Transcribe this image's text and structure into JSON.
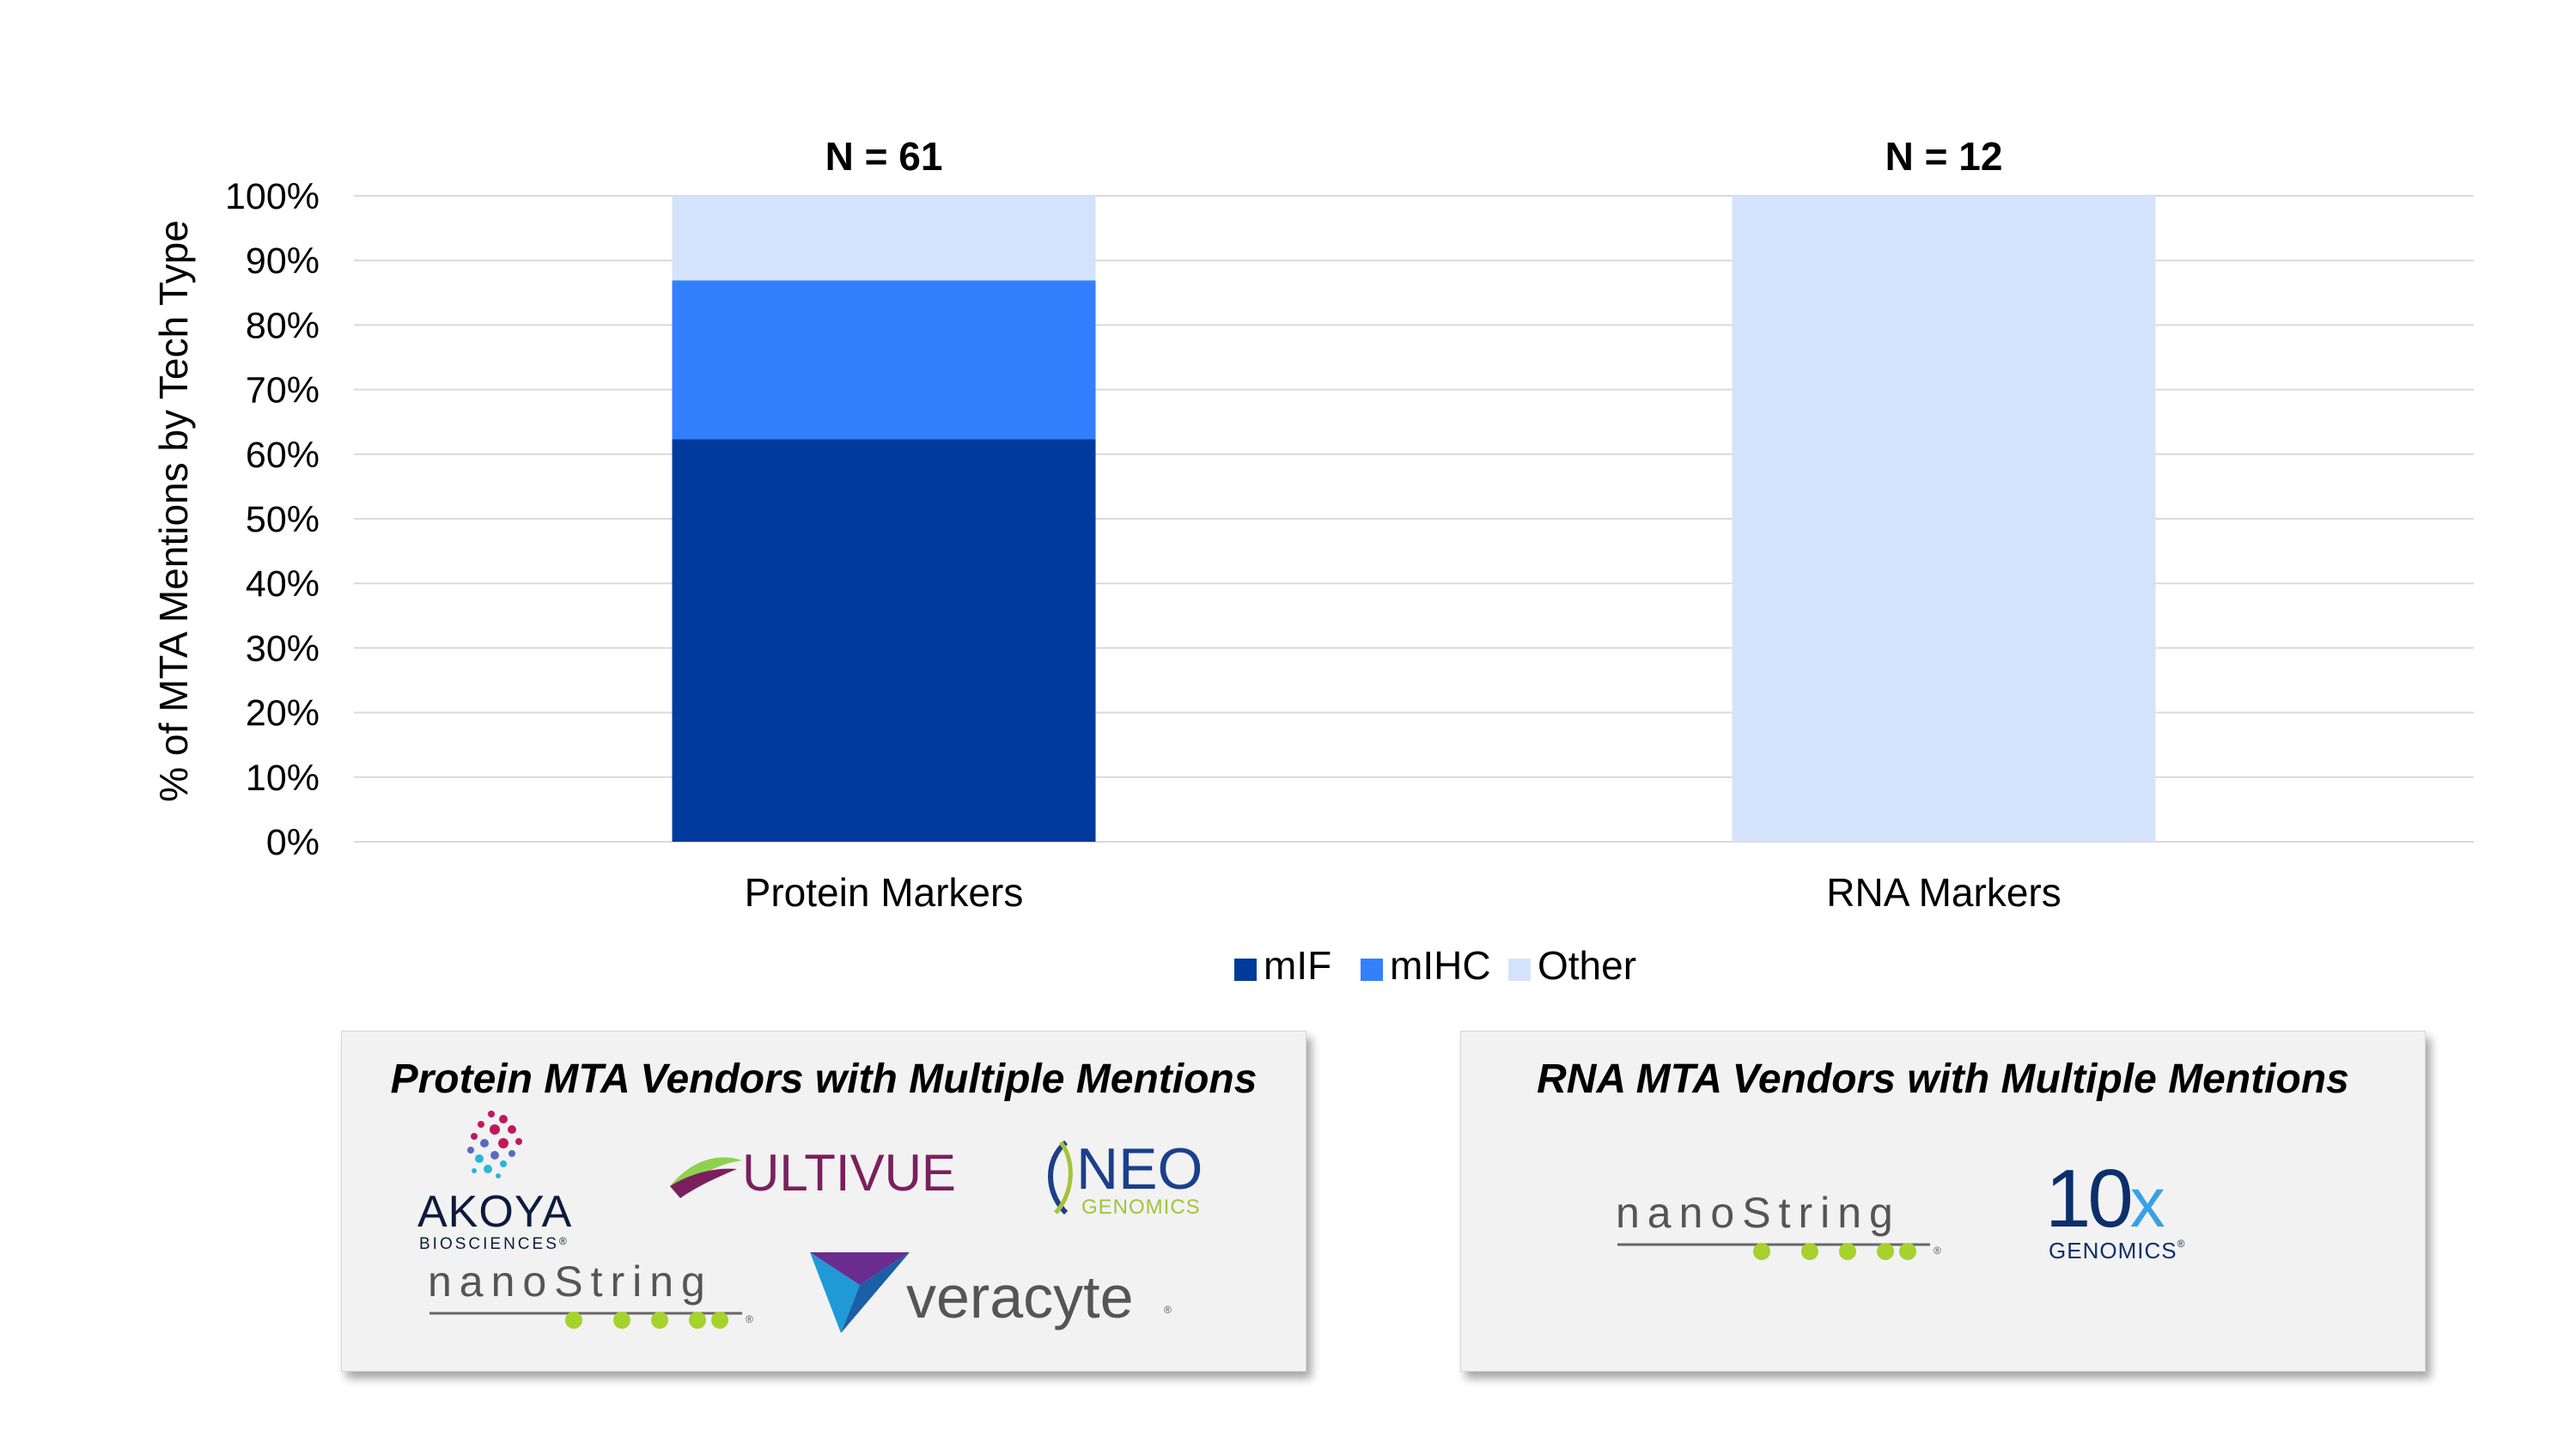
{
  "chart_data": {
    "type": "bar",
    "stacked": true,
    "categories": [
      "Protein Markers",
      "RNA Markers"
    ],
    "series": [
      {
        "name": "mIF",
        "color": "#003a9c",
        "values": [
          62.3,
          0
        ]
      },
      {
        "name": "mIHC",
        "color": "#3380ff",
        "values": [
          24.6,
          0
        ]
      },
      {
        "name": "Other",
        "color": "#d3e3fb",
        "values": [
          13.1,
          100
        ]
      }
    ],
    "annotations": [
      "N = 61",
      "N = 12"
    ],
    "ylabel": "% of MTA Mentions by Tech Type",
    "xlabel": "",
    "ylim": [
      0,
      100
    ],
    "yticks": [
      "0%",
      "10%",
      "20%",
      "30%",
      "40%",
      "50%",
      "60%",
      "70%",
      "80%",
      "90%",
      "100%"
    ],
    "grid": true,
    "legend": "bottom-center"
  },
  "vendor_boxes": {
    "protein": {
      "title": "Protein MTA Vendors with Multiple Mentions",
      "logos": {
        "akoya": {
          "name": "AKOYA",
          "sub": "BIOSCIENCES",
          "mark": "®"
        },
        "ultivue": {
          "name": "ULTIVUE"
        },
        "neo": {
          "name": "NEO",
          "sub": "GENOMICS"
        },
        "nanostring": {
          "name": "nanoString",
          "mark": "®"
        },
        "veracyte": {
          "name": "veracyte",
          "mark": "®"
        }
      }
    },
    "rna": {
      "title": "RNA MTA Vendors with Multiple Mentions",
      "logos": {
        "nanostring": {
          "name": "nanoString",
          "mark": "®"
        },
        "tenx": {
          "name": "10",
          "x": "x",
          "sub": "GENOMICS",
          "mark": "®"
        }
      }
    }
  },
  "colors": {
    "mIF": "#003a9c",
    "mIHC": "#3380ff",
    "Other": "#d3e3fb",
    "grid": "#d9d9d9",
    "box_bg": "#f2f2f2"
  }
}
